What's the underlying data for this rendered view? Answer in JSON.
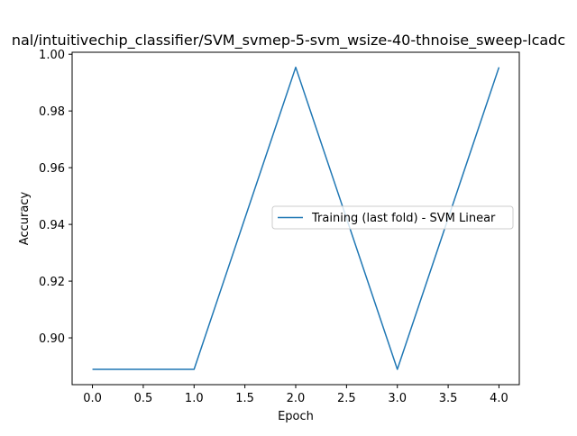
{
  "chart_data": {
    "type": "line",
    "title": "nal/intuitivechip_classifier/SVM_svmep-5-svm_wsize-40-thnoise_sweep-lcadc",
    "xlabel": "Epoch",
    "ylabel": "Accuracy",
    "xlim": [
      -0.2,
      4.2
    ],
    "ylim": [
      0.8835,
      1.0007
    ],
    "x_ticks": [
      0.0,
      0.5,
      1.0,
      1.5,
      2.0,
      2.5,
      3.0,
      3.5,
      4.0
    ],
    "x_tick_labels": [
      "0.0",
      "0.5",
      "1.0",
      "1.5",
      "2.0",
      "2.5",
      "3.0",
      "3.5",
      "4.0"
    ],
    "y_ticks": [
      0.9,
      0.92,
      0.94,
      0.96,
      0.98,
      1.0
    ],
    "y_tick_labels": [
      "0.90",
      "0.92",
      "0.94",
      "0.96",
      "0.98",
      "1.00"
    ],
    "grid": false,
    "legend_position": "center-right",
    "series": [
      {
        "name": "Training (last fold) - SVM Linear",
        "color": "#1f77b4",
        "x": [
          0,
          1,
          2,
          3,
          4
        ],
        "y": [
          0.8889,
          0.8889,
          0.9954,
          0.8889,
          0.9954
        ]
      }
    ]
  }
}
